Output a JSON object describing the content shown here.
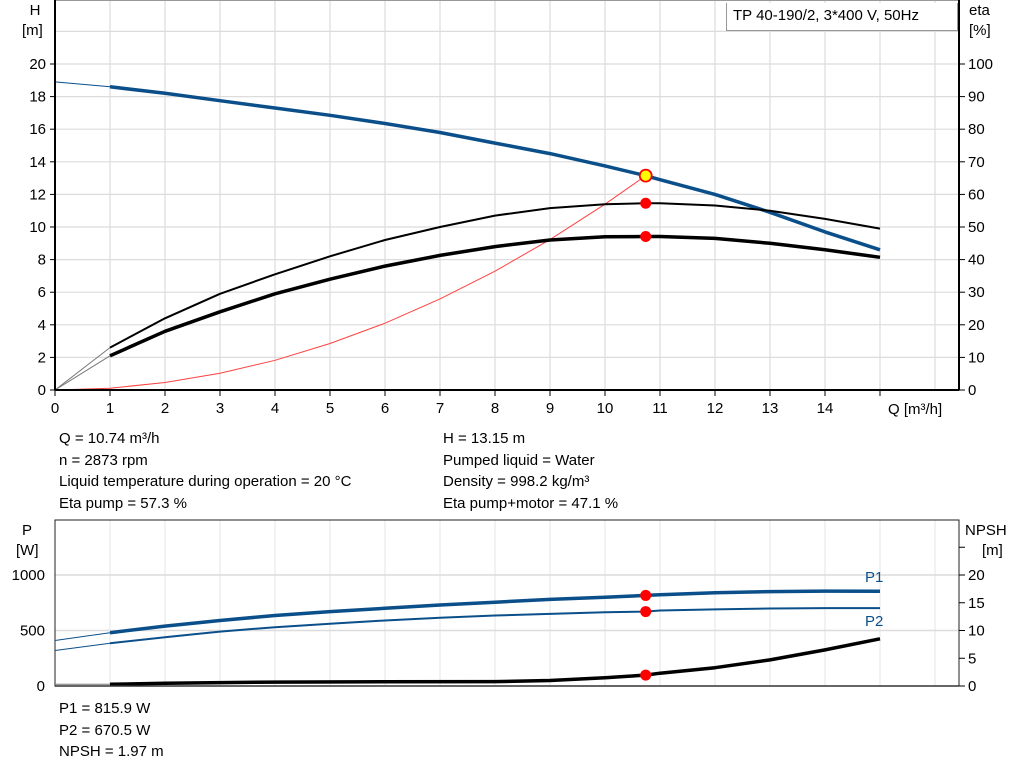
{
  "chart_data": [
    {
      "type": "line",
      "title": "TP 40-190/2, 3*400 V, 50Hz",
      "xlabel": "Q [m³/h]",
      "ylabel_left": [
        "H",
        "[m]"
      ],
      "ylabel_right": [
        "eta",
        "[%]"
      ],
      "xlim": [
        0,
        16
      ],
      "ylim_left": [
        0,
        20
      ],
      "ylim_right": [
        0,
        100
      ],
      "x_ticks": [
        "0",
        "1",
        "2",
        "3",
        "4",
        "5",
        "6",
        "7",
        "8",
        "9",
        "10",
        "11",
        "12",
        "13",
        "14"
      ],
      "y_ticks_left": [
        "0",
        "2",
        "4",
        "6",
        "8",
        "10",
        "12",
        "14",
        "16",
        "18",
        "20"
      ],
      "y_ticks_right": [
        "0",
        "10",
        "20",
        "30",
        "40",
        "50",
        "60",
        "70",
        "80",
        "90",
        "100"
      ],
      "grid": true,
      "series": [
        {
          "axis": "left",
          "color": "#0b4f8a",
          "x": [
            0,
            1,
            2,
            3,
            4,
            5,
            6,
            7,
            8,
            9,
            10,
            10.74,
            11,
            12,
            13,
            14,
            15
          ],
          "values": [
            18.9,
            18.6,
            18.2,
            17.75,
            17.3,
            16.85,
            16.35,
            15.8,
            15.15,
            14.5,
            13.75,
            13.15,
            12.9,
            12.0,
            10.9,
            9.7,
            8.6
          ]
        },
        {
          "axis": "right",
          "color": "#000000",
          "x": [
            0,
            1,
            2,
            3,
            4,
            5,
            6,
            7,
            8,
            9,
            10,
            10.74,
            11,
            12,
            13,
            14,
            15
          ],
          "values": [
            0,
            13,
            22,
            29.5,
            35.5,
            41,
            46,
            50,
            53.5,
            55.8,
            57,
            57.3,
            57.3,
            56.6,
            55,
            52.5,
            49.5
          ]
        },
        {
          "axis": "right",
          "color": "#000000",
          "x": [
            0,
            1,
            2,
            3,
            4,
            5,
            6,
            7,
            8,
            9,
            10,
            10.74,
            11,
            12,
            13,
            14,
            15
          ],
          "values": [
            0,
            10.5,
            18,
            24,
            29.5,
            34,
            38,
            41.3,
            44,
            46,
            47,
            47.1,
            47.1,
            46.5,
            45,
            43,
            40.7
          ]
        },
        {
          "axis": "left",
          "color": "#ff4040",
          "x": [
            0,
            1,
            2,
            3,
            4,
            5,
            6,
            7,
            8,
            9,
            10,
            10.74
          ],
          "values": [
            0,
            0.11,
            0.46,
            1.03,
            1.82,
            2.85,
            4.1,
            5.59,
            7.29,
            9.23,
            11.4,
            13.15
          ]
        }
      ],
      "operating_point": {
        "Q": 10.74,
        "H": 13.15,
        "eta_pump": 57.3,
        "eta_pump_motor": 47.1
      }
    },
    {
      "type": "line",
      "ylabel_left": [
        "P",
        "[W]"
      ],
      "ylabel_right": [
        "NPSH",
        "[m]"
      ],
      "xlim": [
        0,
        16
      ],
      "ylim_left": [
        0,
        1500
      ],
      "ylim_right": [
        0,
        30
      ],
      "y_ticks_left": [
        "0",
        "500",
        "1000"
      ],
      "y_ticks_right": [
        "0",
        "5",
        "10",
        "15",
        "20"
      ],
      "grid": true,
      "series": [
        {
          "name": "P1",
          "axis": "left",
          "color": "#0b4f8a",
          "x": [
            0,
            1,
            2,
            3,
            4,
            5,
            6,
            7,
            8,
            9,
            10,
            10.74,
            11,
            12,
            13,
            14,
            15
          ],
          "values": [
            410,
            480,
            540,
            590,
            635,
            670,
            700,
            730,
            755,
            780,
            800,
            815.9,
            822,
            840,
            850,
            855,
            853
          ]
        },
        {
          "name": "P2",
          "axis": "left",
          "color": "#0b4f8a",
          "x": [
            0,
            1,
            2,
            3,
            4,
            5,
            6,
            7,
            8,
            9,
            10,
            10.74,
            11,
            12,
            13,
            14,
            15
          ],
          "values": [
            320,
            385,
            440,
            490,
            530,
            560,
            590,
            615,
            635,
            650,
            665,
            670.5,
            680,
            690,
            698,
            702,
            702
          ]
        },
        {
          "axis": "right",
          "color": "#000000",
          "x": [
            0,
            1,
            2,
            4,
            6,
            8,
            9,
            10,
            10.74,
            11,
            12,
            13,
            14,
            15
          ],
          "values": [
            0.3,
            0.3,
            0.5,
            0.7,
            0.75,
            0.8,
            1.0,
            1.5,
            1.97,
            2.3,
            3.3,
            4.7,
            6.5,
            8.5
          ]
        }
      ],
      "operating_point": {
        "Q": 10.74,
        "P1": 815.9,
        "P2": 670.5,
        "NPSH": 1.97
      }
    }
  ],
  "info_left": [
    "Q = 10.74 m³/h",
    "n = 2873 rpm",
    "Liquid temperature during operation = 20 °C",
    "Eta pump = 57.3 %"
  ],
  "info_right": [
    "H = 13.15 m",
    "Pumped liquid = Water",
    "Density = 998.2 kg/m³",
    "Eta pump+motor = 47.1 %"
  ],
  "info_bottom": [
    "P1 = 815.9 W",
    "P2 = 670.5 W",
    "NPSH = 1.97 m"
  ]
}
